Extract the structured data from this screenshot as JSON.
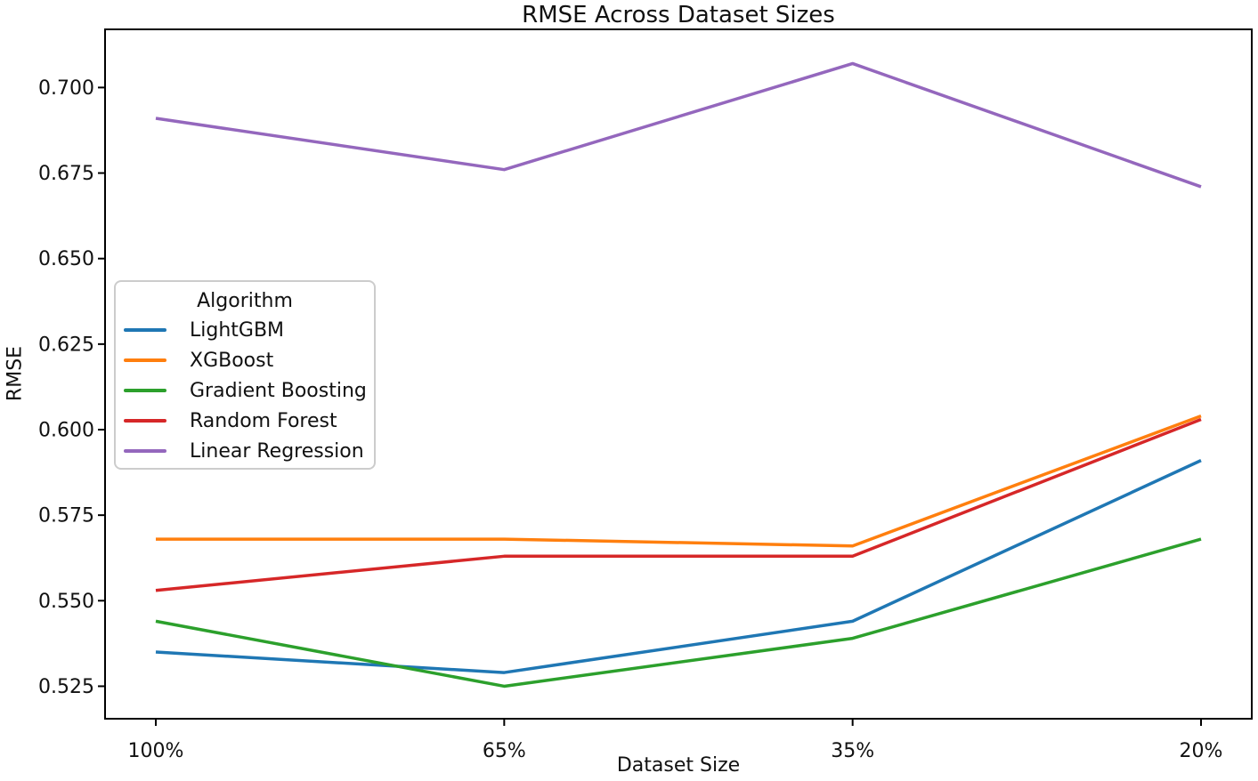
{
  "chart_data": {
    "type": "line",
    "title": "RMSE Across Dataset Sizes",
    "xlabel": "Dataset Size",
    "ylabel": "RMSE",
    "categories": [
      "100%",
      "65%",
      "35%",
      "20%"
    ],
    "series": [
      {
        "name": "LightGBM",
        "color": "#1f77b4",
        "values": [
          0.535,
          0.529,
          0.544,
          0.591
        ]
      },
      {
        "name": "XGBoost",
        "color": "#ff7f0e",
        "values": [
          0.568,
          0.568,
          0.566,
          0.604
        ]
      },
      {
        "name": "Gradient Boosting",
        "color": "#2ca02c",
        "values": [
          0.544,
          0.525,
          0.539,
          0.568
        ]
      },
      {
        "name": "Random Forest",
        "color": "#d62728",
        "values": [
          0.553,
          0.563,
          0.563,
          0.603
        ]
      },
      {
        "name": "Linear Regression",
        "color": "#9467bd",
        "values": [
          0.691,
          0.676,
          0.707,
          0.671
        ]
      }
    ],
    "yticks": [
      0.525,
      0.55,
      0.575,
      0.6,
      0.625,
      0.65,
      0.675,
      0.7
    ],
    "ytick_labels": [
      "0.525",
      "0.550",
      "0.575",
      "0.600",
      "0.625",
      "0.650",
      "0.675",
      "0.700"
    ],
    "ylim": [
      0.5155,
      0.717
    ],
    "grid": false,
    "legend": {
      "title": "Algorithm",
      "position": "center-left"
    },
    "axis_color": "#000000",
    "text_color": "#111111"
  }
}
